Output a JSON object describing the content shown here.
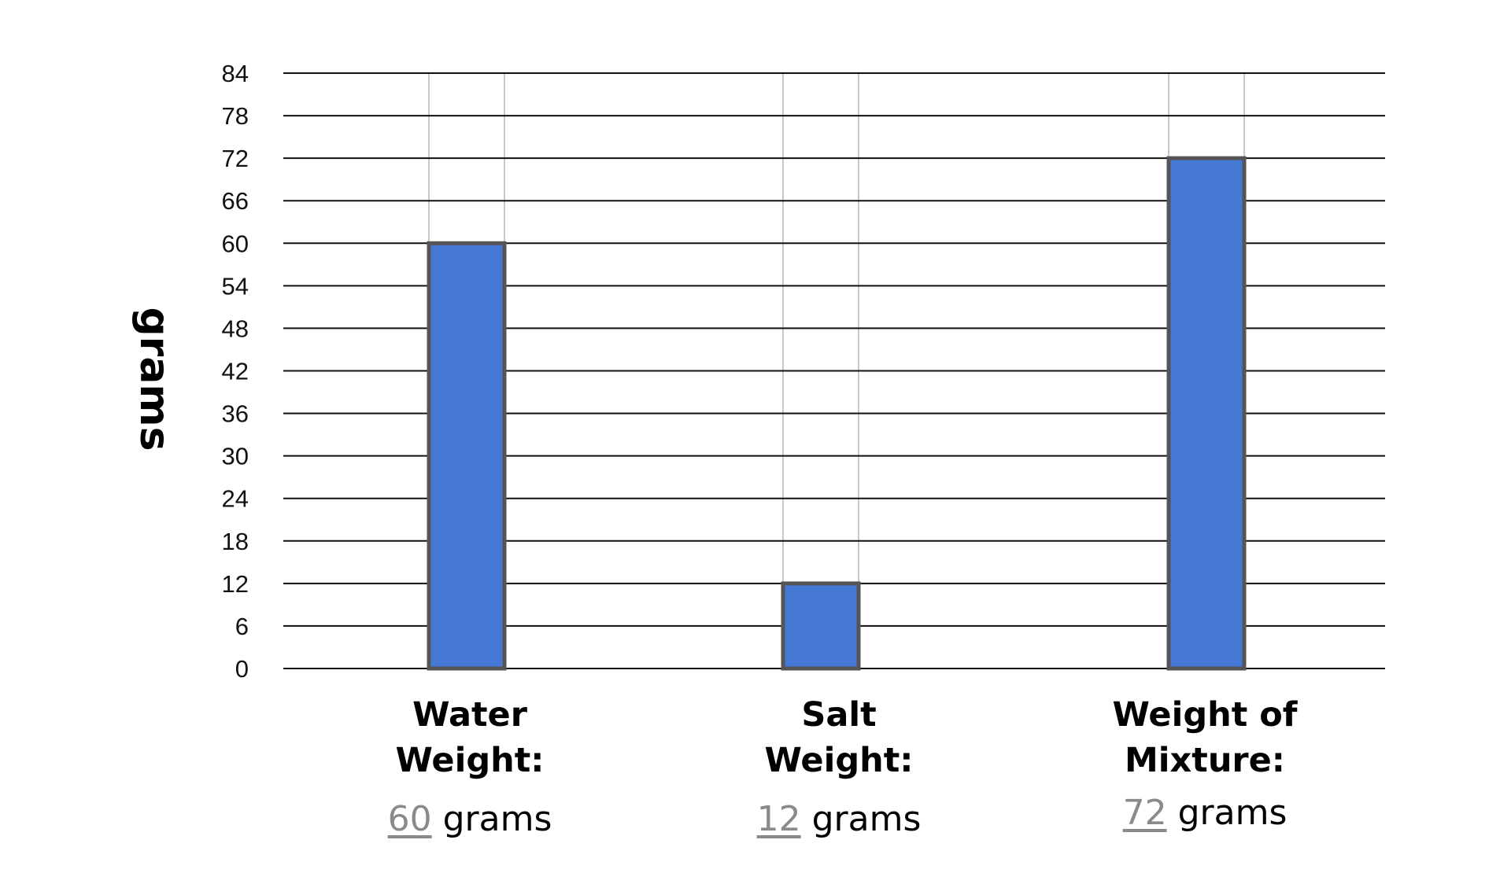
{
  "chart_data": {
    "type": "bar",
    "categories": [
      [
        "Water",
        "Weight:"
      ],
      [
        "Salt",
        "Weight:"
      ],
      [
        "Weight of",
        "Mixture:"
      ]
    ],
    "values": [
      60,
      12,
      72
    ],
    "value_texts": [
      "60",
      "12",
      "72"
    ],
    "unit": "grams",
    "ylabel": "grams",
    "ylim": [
      0,
      84
    ],
    "yticks": [
      "0",
      "6",
      "12",
      "18",
      "24",
      "30",
      "36",
      "42",
      "48",
      "54",
      "60",
      "66",
      "72",
      "78",
      "84"
    ],
    "grid": true,
    "bar_color": "#4678D6",
    "bar_edge_color": "#555555"
  }
}
